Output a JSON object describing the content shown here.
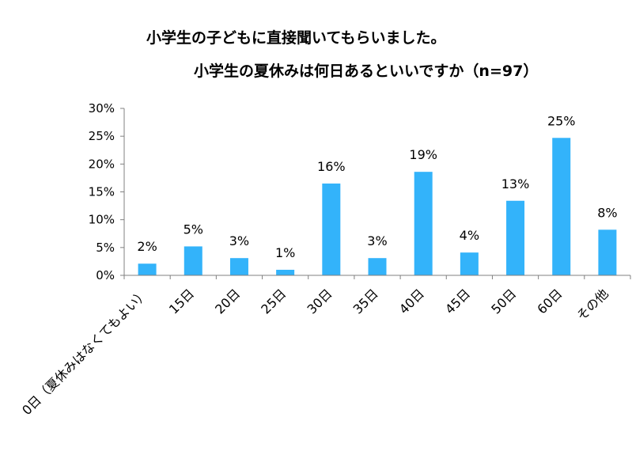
{
  "chart_data": {
    "type": "bar",
    "title": "小学生の子どもに直接聞いてもらいました。",
    "subtitle": "小学生の夏休みは何日あるといいですか（n=97）",
    "categories": [
      "0日（夏休みはなくてもよい）",
      "15日",
      "20日",
      "25日",
      "30日",
      "35日",
      "40日",
      "45日",
      "50日",
      "60日",
      "その他"
    ],
    "values": [
      2,
      5,
      3,
      1,
      16,
      3,
      19,
      4,
      13,
      25,
      8
    ],
    "plot_values": [
      2.1,
      5.2,
      3.1,
      1.0,
      16.5,
      3.1,
      18.6,
      4.1,
      13.4,
      24.7,
      8.2
    ],
    "data_labels": [
      "2%",
      "5%",
      "3%",
      "1%",
      "16%",
      "3%",
      "19%",
      "4%",
      "13%",
      "25%",
      "8%"
    ],
    "yticks": [
      "0%",
      "5%",
      "10%",
      "15%",
      "20%",
      "25%",
      "30%"
    ],
    "ylim": [
      0,
      30
    ],
    "xlabel": "",
    "ylabel": "",
    "bar_color": "#33B3FA",
    "axis_color": "#808080"
  }
}
